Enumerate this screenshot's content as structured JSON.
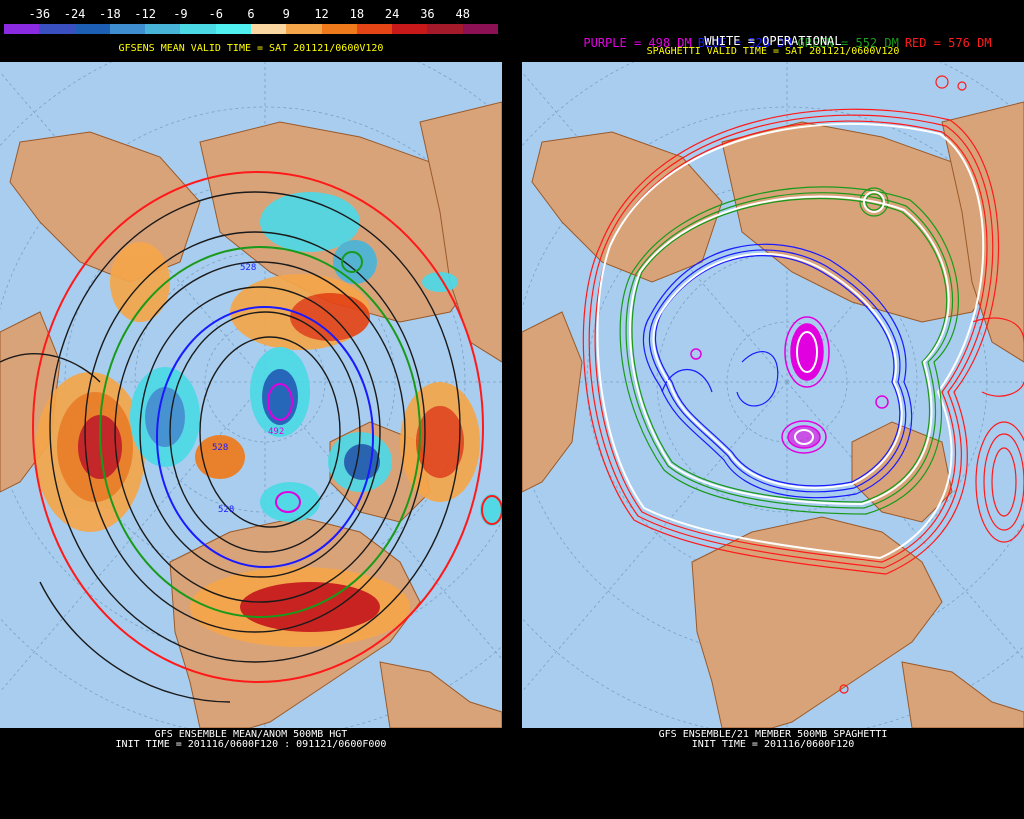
{
  "left": {
    "colorbar": {
      "labels": [
        "-36",
        "-24",
        "-18",
        "-12",
        "-9",
        "-6",
        "6",
        "9",
        "12",
        "18",
        "24",
        "36",
        "48"
      ],
      "colors": [
        "#8a2be2",
        "#3a4fc0",
        "#1c5fb5",
        "#3f8fd0",
        "#48b5d8",
        "#4cd9e6",
        "#50f0f0",
        "#fad7a0",
        "#f5a64a",
        "#ef7a1c",
        "#e54515",
        "#c71919",
        "#a51a2a",
        "#8b1054"
      ]
    },
    "valid_title": "GFSENS MEAN VALID TIME = SAT 201121/0600V120",
    "contour_labels": [
      "528",
      "528",
      "492",
      "528"
    ],
    "footer_line1": "GFS ENSEMBLE MEAN/ANOM 500MB HGT",
    "footer_line2": "INIT TIME = 201116/0600F120 : 091121/0600F000"
  },
  "right": {
    "legend": {
      "purple": "PURPLE = 498 DM",
      "blue": "BLUE = 528 DM",
      "green": "GREEN = 552 DM",
      "red": "RED = 576 DM",
      "white": "WHITE = OPERATIONAL"
    },
    "legend_colors": {
      "purple": "#e000e0",
      "blue": "#1a1aff",
      "green": "#1a9a1a",
      "red": "#ff1a1a",
      "white": "#ffffff"
    },
    "valid_title": "SPAGHETTI VALID TIME = SAT 201121/0600V120",
    "footer_line1": "GFS ENSEMBLE/21 MEMBER 500MB SPAGHETTI",
    "footer_line2": "INIT TIME = 201116/0600F120"
  },
  "colors": {
    "ocean": "#a8cdef",
    "land": "#d9a37a",
    "coast": "#9a5a2a",
    "title_yellow": "#ffff00",
    "footer_white": "#ffffff"
  }
}
